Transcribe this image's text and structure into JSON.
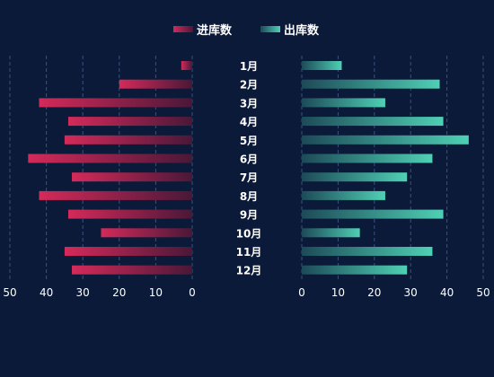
{
  "chart_data": {
    "type": "bar",
    "orientation": "horizontal-butterfly",
    "categories": [
      "1月",
      "2月",
      "3月",
      "4月",
      "5月",
      "6月",
      "7月",
      "8月",
      "9月",
      "10月",
      "11月",
      "12月"
    ],
    "series": [
      {
        "name": "进库数",
        "side": "left",
        "values": [
          3,
          20,
          42,
          34,
          35,
          45,
          33,
          42,
          34,
          25,
          35,
          33
        ]
      },
      {
        "name": "出库数",
        "side": "right",
        "values": [
          11,
          38,
          23,
          39,
          46,
          36,
          29,
          23,
          39,
          16,
          36,
          29
        ]
      }
    ],
    "xlim": [
      0,
      50
    ],
    "xticks": [
      0,
      10,
      20,
      30,
      40,
      50
    ],
    "grid": true,
    "legend_position": "top-center"
  },
  "colors": {
    "background": "#0b1a38",
    "in_bar_strong": "#d42a5a",
    "in_bar_faint": "#4a1838",
    "out_bar_strong": "#4fd0b4",
    "out_bar_faint": "#1d4a58",
    "grid": "#3a5180",
    "text": "#ffffff"
  }
}
